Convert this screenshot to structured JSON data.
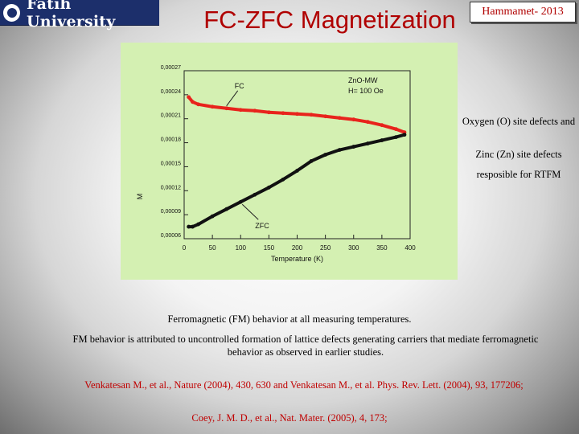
{
  "logo": {
    "text": "Fatih University"
  },
  "title": "FC-ZFC Magnetization",
  "badge": "Hammamet- 2013",
  "side_notes": [
    "Oxygen (O) site defects and",
    "Zinc (Zn) site defects",
    "resposible for RTFM"
  ],
  "body": {
    "line1": "Ferromagnetic (FM) behavior at all measuring temperatures.",
    "line2": "FM behavior is attributed to uncontrolled formation of lattice defects generating carriers that mediate ferromagnetic behavior as observed in earlier studies.",
    "ref1": "Venkatesan M., et al., Nature (2004), 430, 630 and Venkatesan M., et al. Phys. Rev. Lett. (2004), 93, 177206;",
    "ref2": "Coey, J. M. D., et al., Nat. Mater. (2005), 4, 173;"
  },
  "chart_data": {
    "type": "line",
    "sample_label": "ZnO-MW",
    "field_label": "H= 100 Oe",
    "xlabel": "Temperature (K)",
    "ylabel": "M",
    "xlim": [
      0,
      400
    ],
    "ylim": [
      6e-05,
      0.00027
    ],
    "xticks": [
      0,
      50,
      100,
      150,
      200,
      250,
      300,
      350,
      400
    ],
    "x_tick_labels": [
      "0",
      "50",
      "100",
      "150",
      "200",
      "250",
      "300",
      "350",
      "400"
    ],
    "yticks": [
      6e-05,
      9e-05,
      0.00012,
      0.00015,
      0.00018,
      0.00021,
      0.00024,
      0.00027
    ],
    "y_tick_labels": [
      "0,00006",
      "0,00009",
      "0,00012",
      "0,00015",
      "0,00018",
      "0,00021",
      "0,00024",
      "0,00027"
    ],
    "series": [
      {
        "name": "FC",
        "color": "#e8231c",
        "x": [
          8,
          15,
          25,
          50,
          75,
          100,
          125,
          150,
          175,
          200,
          225,
          250,
          275,
          300,
          325,
          350,
          375,
          390
        ],
        "y": [
          0.000237,
          0.000231,
          0.000228,
          0.000225,
          0.000223,
          0.000221,
          0.00022,
          0.000218,
          0.000217,
          0.000216,
          0.000215,
          0.000213,
          0.000211,
          0.000209,
          0.000206,
          0.000202,
          0.000197,
          0.000193
        ]
      },
      {
        "name": "ZFC",
        "color": "#111111",
        "x": [
          8,
          15,
          25,
          50,
          75,
          100,
          125,
          150,
          175,
          200,
          225,
          250,
          275,
          300,
          325,
          350,
          375,
          390
        ],
        "y": [
          7.5e-05,
          7.5e-05,
          7.8e-05,
          8.8e-05,
          9.7e-05,
          0.000106,
          0.000115,
          0.000124,
          0.000134,
          0.000145,
          0.000157,
          0.000165,
          0.000171,
          0.000175,
          0.000179,
          0.000183,
          0.000187,
          0.00019
        ]
      }
    ]
  }
}
